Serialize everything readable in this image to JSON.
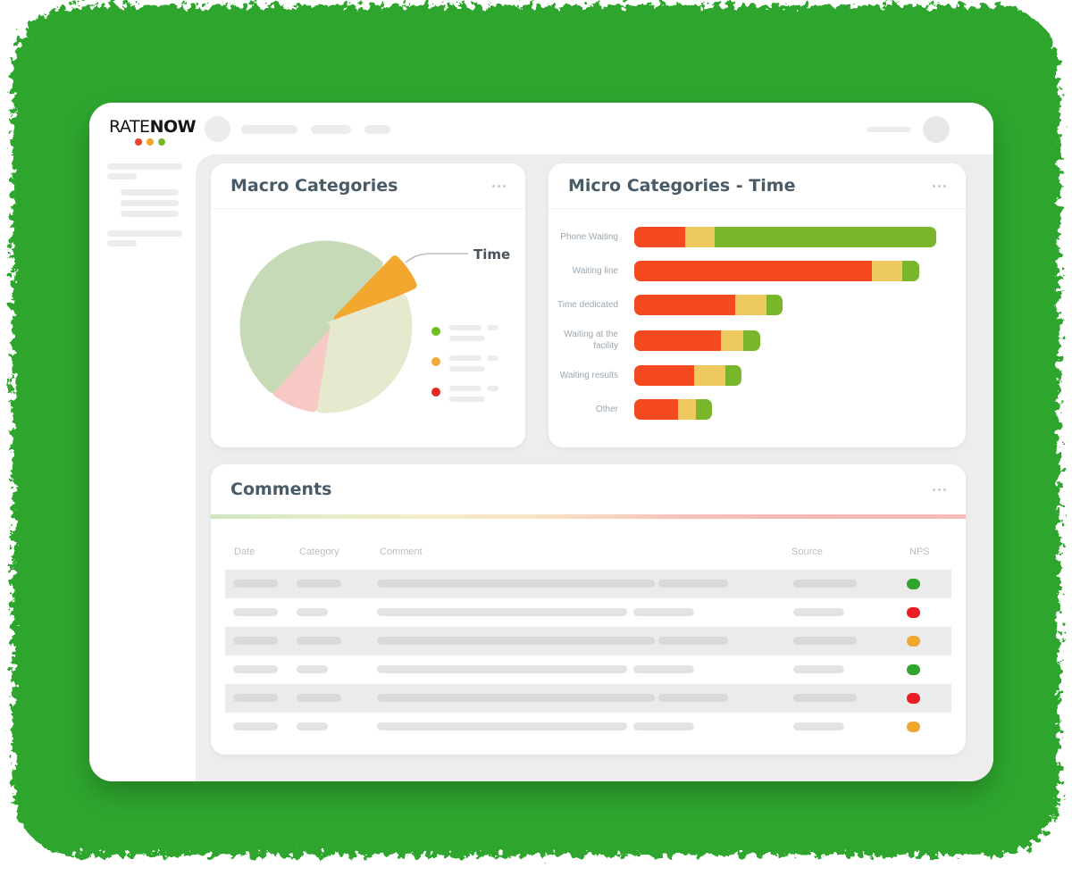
{
  "app": {
    "logo": {
      "text_regular": "RATE",
      "text_bold": "NOW",
      "dot_colors": [
        "#e8432a",
        "#f2a42b",
        "#77b82a"
      ]
    }
  },
  "cards": {
    "macro": {
      "title": "Macro Categories",
      "callout_label": "Time",
      "legend_dot_colors": [
        "#6fbe22",
        "#f2a93b",
        "#e22a20"
      ]
    },
    "micro": {
      "title": "Micro Categories - Time"
    },
    "comments": {
      "title": "Comments"
    }
  },
  "chart_data": [
    {
      "type": "pie",
      "title": "Macro Categories",
      "annotation": "Time",
      "legend_position": "right",
      "slices": [
        {
          "name": "segment-large-green",
          "color": "#c7dab8",
          "start_deg": 247,
          "end_deg": 369,
          "percent_est": 34
        },
        {
          "name": "segment-top-green",
          "color": "#c7dab8",
          "start_deg": 12,
          "end_deg": 40,
          "percent_est": 8
        },
        {
          "name": "time",
          "color": "#f2a72e",
          "start_deg": 44,
          "end_deg": 66,
          "percent_est": 6,
          "explode": 16,
          "label": "Time"
        },
        {
          "name": "segment-pale-small",
          "color": "#e6e9ce",
          "start_deg": 70,
          "end_deg": 96,
          "percent_est": 7
        },
        {
          "name": "segment-pale-large",
          "color": "#e6e9ce",
          "start_deg": 99,
          "end_deg": 184,
          "percent_est": 24
        },
        {
          "name": "segment-pink",
          "color": "#f7c9c5",
          "start_deg": 189,
          "end_deg": 217,
          "percent_est": 8
        },
        {
          "name": "segment-sliver-green",
          "color": "#c7dab8",
          "start_deg": 221,
          "end_deg": 243,
          "percent_est": 6
        }
      ]
    },
    {
      "type": "bar",
      "title": "Micro Categories - Time",
      "orientation": "horizontal",
      "stacked": true,
      "axis_labels_shown": false,
      "categories": [
        "Phone Waiting",
        "Waiting line",
        "Time dedicated",
        "Waiting at the facility",
        "Waiting results",
        "Other"
      ],
      "series": [
        {
          "name": "red-segment",
          "color": "#f4491f",
          "values": [
            57,
            266,
            113,
            97,
            67,
            49
          ]
        },
        {
          "name": "yellow-segment",
          "color": "#edc95f",
          "values": [
            33,
            34,
            35,
            25,
            35,
            20
          ]
        },
        {
          "name": "green-segment",
          "color": "#7ab62c",
          "values": [
            248,
            19,
            18,
            19,
            18,
            18
          ]
        }
      ],
      "units": "pixel-estimated lengths (no numeric axis shown)"
    }
  ],
  "comments_table": {
    "columns": [
      "Date",
      "Category",
      "Comment",
      "Source",
      "NPS"
    ],
    "nps_colors": {
      "green": "#2fa52e",
      "red": "#ea1c25",
      "orange": "#efa82f"
    },
    "rows": [
      {
        "shaded": true,
        "nps": "green"
      },
      {
        "shaded": false,
        "nps": "red"
      },
      {
        "shaded": true,
        "nps": "orange"
      },
      {
        "shaded": false,
        "nps": "green"
      },
      {
        "shaded": true,
        "nps": "red"
      },
      {
        "shaded": false,
        "nps": "orange"
      }
    ]
  },
  "colors": {
    "background_green": "#2fa62e",
    "title_text": "#4a5b68",
    "content_background": "#ededed"
  }
}
